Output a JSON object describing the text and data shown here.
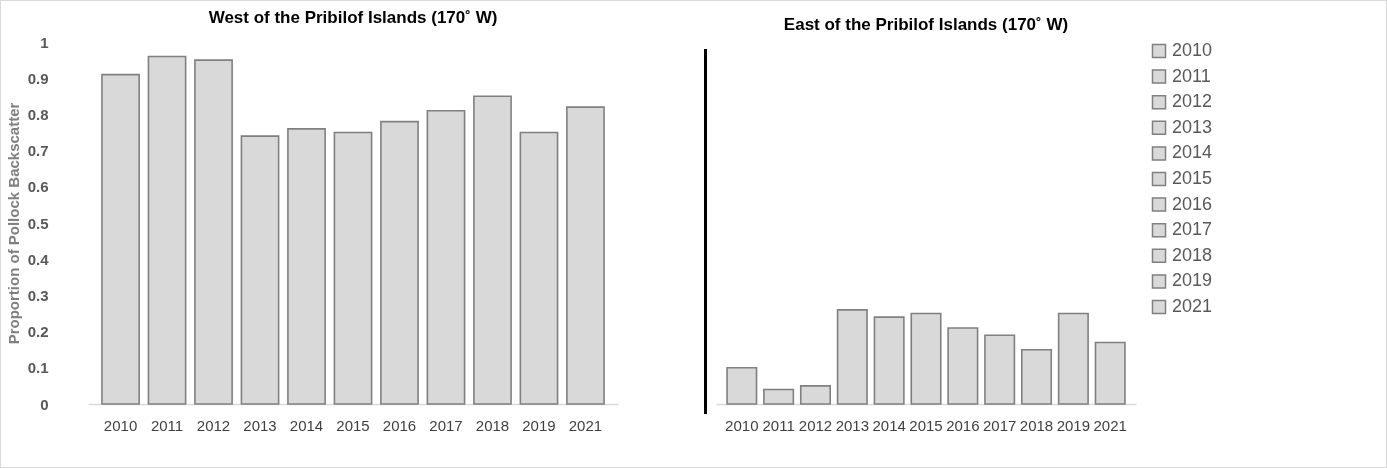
{
  "chart_data": [
    {
      "type": "bar",
      "title": "West of the Pribilof Islands (170˚ W)",
      "ylabel": "Proportion of Pollock Backscatter",
      "categories": [
        "2010",
        "2011",
        "2012",
        "2013",
        "2014",
        "2015",
        "2016",
        "2017",
        "2018",
        "2019",
        "2021"
      ],
      "values": [
        0.91,
        0.96,
        0.95,
        0.74,
        0.76,
        0.75,
        0.78,
        0.81,
        0.85,
        0.75,
        0.82
      ],
      "color": "#d9d9d9",
      "ylim": [
        0,
        1
      ],
      "yticks": [
        0,
        0.1,
        0.2,
        0.3,
        0.4,
        0.5,
        0.6,
        0.7,
        0.8,
        0.9,
        1
      ],
      "grid": false
    },
    {
      "type": "bar",
      "title": "East of the Pribilof Islands (170˚ W)",
      "categories": [
        "2010",
        "2011",
        "2012",
        "2013",
        "2014",
        "2015",
        "2016",
        "2017",
        "2018",
        "2019",
        "2021"
      ],
      "series": [
        {
          "name": "2010",
          "color": "#d9d9d9",
          "values": [
            0.1,
            null,
            null,
            null,
            null,
            null,
            null,
            null,
            null,
            null,
            null
          ]
        },
        {
          "name": "2011",
          "color": "#d9d9d9",
          "values": [
            null,
            0.04,
            null,
            null,
            null,
            null,
            null,
            null,
            null,
            null,
            null
          ]
        },
        {
          "name": "2012",
          "color": "#d9d9d9",
          "values": [
            null,
            null,
            0.05,
            null,
            null,
            null,
            null,
            null,
            null,
            null,
            null
          ]
        },
        {
          "name": "2013",
          "color": "#d9d9d9",
          "values": [
            null,
            null,
            null,
            0.26,
            null,
            null,
            null,
            null,
            null,
            null,
            null
          ]
        },
        {
          "name": "2014",
          "color": "#d9d9d9",
          "values": [
            null,
            null,
            null,
            null,
            0.24,
            null,
            null,
            null,
            null,
            null,
            null
          ]
        },
        {
          "name": "2015",
          "color": "#d9d9d9",
          "values": [
            null,
            null,
            null,
            null,
            null,
            0.25,
            null,
            null,
            null,
            null,
            null
          ]
        },
        {
          "name": "2016",
          "color": "#d9d9d9",
          "values": [
            null,
            null,
            null,
            null,
            null,
            null,
            0.21,
            null,
            null,
            null,
            null
          ]
        },
        {
          "name": "2017",
          "color": "#d9d9d9",
          "values": [
            null,
            null,
            null,
            null,
            null,
            null,
            null,
            0.19,
            null,
            null,
            null
          ]
        },
        {
          "name": "2018",
          "color": "#d9d9d9",
          "values": [
            null,
            null,
            null,
            null,
            null,
            null,
            null,
            null,
            0.15,
            null,
            null
          ]
        },
        {
          "name": "2019",
          "color": "#d9d9d9",
          "values": [
            null,
            null,
            null,
            null,
            null,
            null,
            null,
            null,
            null,
            0.25,
            null
          ]
        },
        {
          "name": "2021",
          "color": "#d9d9d9",
          "values": [
            null,
            null,
            null,
            null,
            null,
            null,
            null,
            null,
            null,
            null,
            0.17
          ]
        }
      ],
      "ylim": [
        0,
        1
      ],
      "yticks": [
        0,
        0.1,
        0.2,
        0.3,
        0.4,
        0.5,
        0.6,
        0.7,
        0.8,
        0.9,
        1
      ],
      "tick_labels": "x",
      "grid": false,
      "legend": "right"
    }
  ]
}
